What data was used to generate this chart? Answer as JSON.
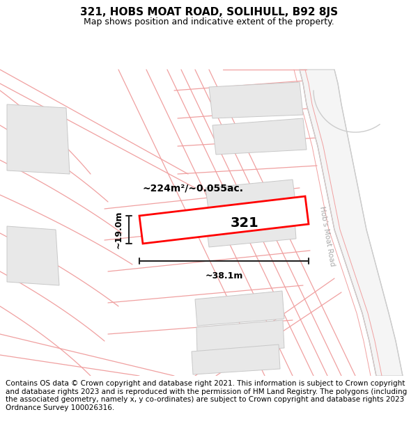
{
  "title": "321, HOBS MOAT ROAD, SOLIHULL, B92 8JS",
  "subtitle": "Map shows position and indicative extent of the property.",
  "footer": "Contains OS data © Crown copyright and database right 2021. This information is subject to Crown copyright and database rights 2023 and is reproduced with the permission of HM Land Registry. The polygons (including the associated geometry, namely x, y co-ordinates) are subject to Crown copyright and database rights 2023 Ordnance Survey 100026316.",
  "area_label": "~224m²/~0.055ac.",
  "width_label": "~38.1m",
  "height_label": "~19.0m",
  "property_label": "321",
  "road_label": "Hob's Moat Road",
  "bg_color": "#ffffff",
  "map_bg": "#ffffff",
  "plot_color": "#ff0000",
  "road_color": "#f0a0a0",
  "road_lw": 1.0,
  "building_fill": "#e8e8e8",
  "building_outline": "#c8c8c8",
  "title_fontsize": 11,
  "subtitle_fontsize": 9,
  "footer_fontsize": 7.5,
  "dim_line_color": "#222222",
  "label_fontsize": 11,
  "prop_label_fontsize": 16,
  "road_text_color": "#aaaaaa"
}
